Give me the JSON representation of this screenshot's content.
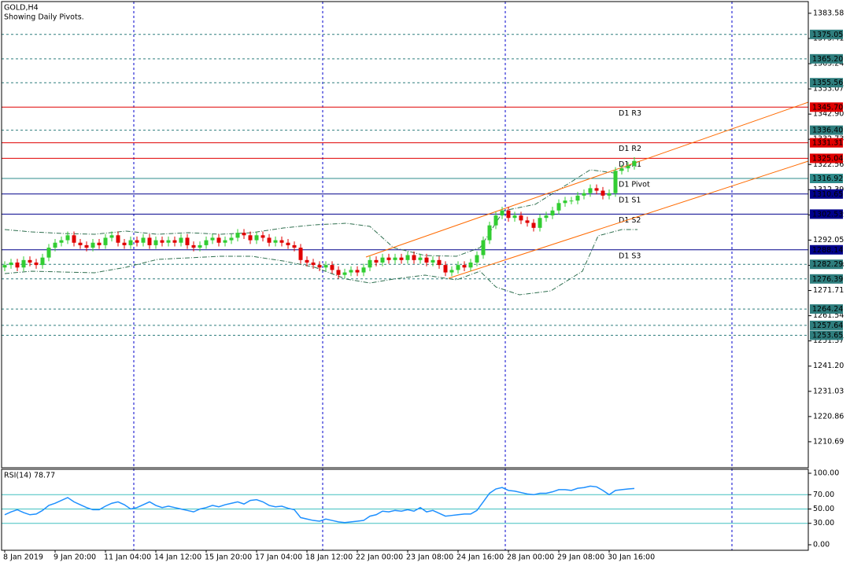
{
  "chart_data": {
    "type": "candlestick",
    "title": "GOLD,H4",
    "subtitle": "Showing Daily Pivots.",
    "up_color": "#32cd32",
    "down_color": "#e00000",
    "categories": [
      "8 Jan 2019",
      null,
      null,
      null,
      null,
      null,
      null,
      null,
      "9 Jan 20:00",
      null,
      null,
      null,
      null,
      null,
      null,
      null,
      "11 Jan 04:00",
      null,
      null,
      null,
      null,
      null,
      null,
      null,
      "14 Jan 12:00",
      null,
      null,
      null,
      null,
      null,
      null,
      null,
      "15 Jan 20:00",
      null,
      null,
      null,
      null,
      null,
      null,
      null,
      "17 Jan 04:00",
      null,
      null,
      null,
      null,
      null,
      null,
      null,
      "18 Jan 12:00",
      null,
      null,
      null,
      null,
      null,
      null,
      null,
      "22 Jan 00:00",
      null,
      null,
      null,
      null,
      null,
      null,
      null,
      "23 Jan 08:00",
      null,
      null,
      null,
      null,
      null,
      null,
      null,
      "24 Jan 16:00",
      null,
      null,
      null,
      null,
      null,
      null,
      null,
      "28 Jan 00:00",
      null,
      null,
      null,
      null,
      null,
      null,
      null,
      "29 Jan 08:00",
      null,
      null,
      null,
      null,
      null,
      null,
      null,
      "30 Jan 16:00",
      null,
      null,
      null,
      null
    ],
    "open": [
      1281,
      1282,
      1283,
      1281,
      1284,
      1283,
      1282,
      1285,
      1289,
      1291,
      1292,
      1294,
      1291,
      1290,
      1289,
      1291,
      1290,
      1293,
      1294,
      1291,
      1290,
      1292,
      1291,
      1293,
      1290,
      1292,
      1291,
      1292,
      1291,
      1293,
      1290,
      1289,
      1290,
      1292,
      1293,
      1291,
      1292,
      1293,
      1295,
      1294,
      1292,
      1294,
      1293,
      1291,
      1292,
      1291,
      1290,
      1289,
      1284,
      1283,
      1282,
      1281,
      1282,
      1280,
      1278,
      1279,
      1280,
      1279,
      1281,
      1284,
      1283,
      1285,
      1284,
      1285,
      1284,
      1286,
      1284,
      1285,
      1283,
      1284,
      1282,
      1279,
      1280,
      1282,
      1281,
      1283,
      1286,
      1292,
      1298,
      1302,
      1304,
      1301,
      1302,
      1300,
      1299,
      1297,
      1301,
      1302,
      1304,
      1307,
      1308,
      1308,
      1310,
      1311,
      1313,
      1312,
      1310,
      1311,
      1320,
      1321,
      1322
    ],
    "high": [
      1283.5,
      1284.5,
      1284.5,
      1285.5,
      1285.5,
      1284.5,
      1286.5,
      1290.5,
      1292.5,
      1293.5,
      1295.5,
      1295.5,
      1292.5,
      1291.5,
      1292.5,
      1292.5,
      1294.5,
      1295.5,
      1295.5,
      1292.5,
      1293.5,
      1293.5,
      1294.5,
      1294.5,
      1293.5,
      1293.5,
      1293.5,
      1293.5,
      1294.5,
      1294.5,
      1291.5,
      1291.5,
      1293.5,
      1294.5,
      1294.5,
      1293.5,
      1294.5,
      1296.5,
      1296.5,
      1295.5,
      1295.5,
      1295.5,
      1294.5,
      1293.5,
      1293.5,
      1292.5,
      1291.5,
      1290.5,
      1285.5,
      1284.5,
      1283.5,
      1283.5,
      1283.5,
      1281.5,
      1280.5,
      1281.5,
      1281.5,
      1282.5,
      1285.5,
      1285.5,
      1286.5,
      1286.5,
      1286.5,
      1286.5,
      1287.5,
      1287.5,
      1286.5,
      1286.5,
      1285.5,
      1285.5,
      1283.5,
      1281.5,
      1283.5,
      1283.5,
      1284.5,
      1287.5,
      1293.5,
      1299.5,
      1303.5,
      1305.5,
      1305.5,
      1303.5,
      1303.5,
      1301.5,
      1300.5,
      1302.5,
      1303.5,
      1305.5,
      1308.5,
      1309.5,
      1309.5,
      1311.5,
      1312.5,
      1314.5,
      1314.5,
      1313.5,
      1312.5,
      1321.5,
      1322.5,
      1323.5,
      1325.5
    ],
    "low": [
      1279.5,
      1280.5,
      1279.5,
      1279.5,
      1281.5,
      1280.5,
      1280.5,
      1283.5,
      1287.5,
      1289.5,
      1290.5,
      1289.5,
      1288.5,
      1287.5,
      1287.5,
      1288.5,
      1288.5,
      1291.5,
      1289.5,
      1288.5,
      1288.5,
      1289.5,
      1289.5,
      1288.5,
      1288.5,
      1289.5,
      1289.5,
      1289.5,
      1289.5,
      1288.5,
      1287.5,
      1287.5,
      1288.5,
      1290.5,
      1289.5,
      1289.5,
      1290.5,
      1291.5,
      1292.5,
      1290.5,
      1290.5,
      1291.5,
      1289.5,
      1289.5,
      1289.5,
      1288.5,
      1287.5,
      1282.5,
      1281.5,
      1280.5,
      1279.5,
      1279.5,
      1278.5,
      1276.5,
      1276.5,
      1277.5,
      1277.5,
      1277.5,
      1279.5,
      1281.5,
      1281.5,
      1282.5,
      1282.5,
      1282.5,
      1282.5,
      1282.5,
      1282.5,
      1281.5,
      1281.5,
      1280.5,
      1277.5,
      1277.5,
      1278.5,
      1279.5,
      1279.5,
      1281.5,
      1284.5,
      1290.5,
      1296.5,
      1300.5,
      1299.5,
      1299.5,
      1298.5,
      1297.5,
      1295.5,
      1295.5,
      1299.5,
      1300.5,
      1302.5,
      1305.5,
      1306.5,
      1306.5,
      1308.5,
      1309.5,
      1310.5,
      1308.5,
      1308.5,
      1309.5,
      1318.5,
      1319.5,
      1320.5
    ],
    "close": [
      1282,
      1283,
      1281,
      1284,
      1283,
      1282,
      1285,
      1289,
      1291,
      1292,
      1294,
      1291,
      1290,
      1289,
      1291,
      1290,
      1293,
      1294,
      1291,
      1290,
      1292,
      1291,
      1293,
      1290,
      1292,
      1291,
      1292,
      1291,
      1293,
      1290,
      1289,
      1290,
      1292,
      1293,
      1291,
      1292,
      1293,
      1295,
      1294,
      1292,
      1294,
      1293,
      1291,
      1292,
      1291,
      1290,
      1289,
      1284,
      1283,
      1282,
      1281,
      1282,
      1280,
      1278,
      1279,
      1280,
      1279,
      1281,
      1284,
      1283,
      1285,
      1284,
      1285,
      1284,
      1286,
      1284,
      1285,
      1283,
      1284,
      1282,
      1279,
      1280,
      1282,
      1281,
      1283,
      1286,
      1292,
      1298,
      1302,
      1304,
      1301,
      1302,
      1300,
      1299,
      1297,
      1301,
      1302,
      1304,
      1307,
      1308,
      1308,
      1310,
      1311,
      1313,
      1312,
      1310,
      1311,
      1320,
      1321,
      1322,
      1324
    ],
    "ylim": [
      1200.2,
      1388.3
    ],
    "yticks": [
      1383.58,
      1373.41,
      1363.24,
      1353.07,
      {
        "value": 1342.9,
        "label": "1342.90"
      },
      1332.73,
      1322.56,
      1312.39,
      1302.22,
      1292.05,
      1281.88,
      1271.71,
      1261.54,
      1251.37,
      {
        "value": 1241.2,
        "label": "1241.20"
      },
      1231.03,
      1220.86,
      1210.69
    ],
    "levels": [
      {
        "value": 1375.05,
        "color": "#2e7d7d",
        "style": "dashed"
      },
      {
        "value": 1365.2,
        "label": "1365.20",
        "color": "#2e7d7d",
        "style": "dashed"
      },
      {
        "value": 1355.56,
        "color": "#2e7d7d",
        "style": "dashed"
      },
      {
        "name": "D1 R3",
        "value": 1345.7,
        "label": "1345.70",
        "color": "#e00000",
        "style": "solid"
      },
      {
        "value": 1336.4,
        "label": "1336.40",
        "color": "#2e7d7d",
        "style": "dashed"
      },
      {
        "name": "D1 R2",
        "value": 1331.31,
        "color": "#e00000",
        "style": "solid"
      },
      {
        "name": "D1 R1",
        "value": 1325.04,
        "color": "#e00000",
        "style": "solid"
      },
      {
        "name": "D1 Pivot",
        "value": 1316.92,
        "color": "#2e8b8b",
        "style": "solid"
      },
      {
        "name": "D1 S1",
        "value": 1310.65,
        "color": "#00008b",
        "style": "solid"
      },
      {
        "name": "D1 S2",
        "value": 1302.53,
        "color": "#00008b",
        "style": "solid"
      },
      {
        "name": "D1 S3",
        "value": 1288.14,
        "color": "#00008b",
        "style": "solid"
      },
      {
        "value": 1282.29,
        "color": "#2e7d7d",
        "style": "dashed"
      },
      {
        "value": 1276.39,
        "color": "#2e7d7d",
        "style": "dashed"
      },
      {
        "value": 1264.24,
        "color": "#2e7d7d",
        "style": "dashed"
      },
      {
        "value": 1257.64,
        "color": "#2e7d7d",
        "style": "dashed"
      },
      {
        "value": 1253.65,
        "color": "#2e7d7d",
        "style": "dashed"
      }
    ],
    "rsi": {
      "label": "RSI(14) 78.77",
      "color": "#1e90ff",
      "level_color": "#40c0c0",
      "values": [
        42,
        46,
        49,
        45,
        42,
        43,
        48,
        55,
        58,
        62,
        66,
        60,
        56,
        52,
        49,
        49,
        54,
        58,
        60,
        56,
        50,
        52,
        56,
        60,
        55,
        52,
        54,
        52,
        50,
        48,
        46,
        50,
        52,
        55,
        53,
        56,
        58,
        60,
        57,
        62,
        63,
        60,
        55,
        53,
        54,
        51,
        49,
        38,
        36,
        34,
        33,
        36,
        34,
        32,
        31,
        32,
        33,
        34,
        40,
        42,
        47,
        46,
        48,
        47,
        49,
        47,
        52,
        46,
        48,
        44,
        40,
        41,
        42,
        43,
        43,
        48,
        60,
        72,
        78,
        80,
        76,
        75,
        73,
        71,
        70,
        72,
        72,
        74,
        77,
        77,
        76,
        79,
        80,
        82,
        81,
        76,
        70,
        76,
        77,
        78,
        78.77
      ],
      "ylim": [
        -7.7,
        105.5
      ],
      "yticks": [
        {
          "value": 100,
          "label": "100.00"
        },
        {
          "value": 70,
          "label": "70.00"
        },
        {
          "value": 50,
          "label": "50.00"
        },
        {
          "value": 30,
          "label": "30.00"
        },
        {
          "value": 0,
          "label": "0.00"
        }
      ],
      "levels": [
        70,
        50,
        30
      ]
    }
  }
}
